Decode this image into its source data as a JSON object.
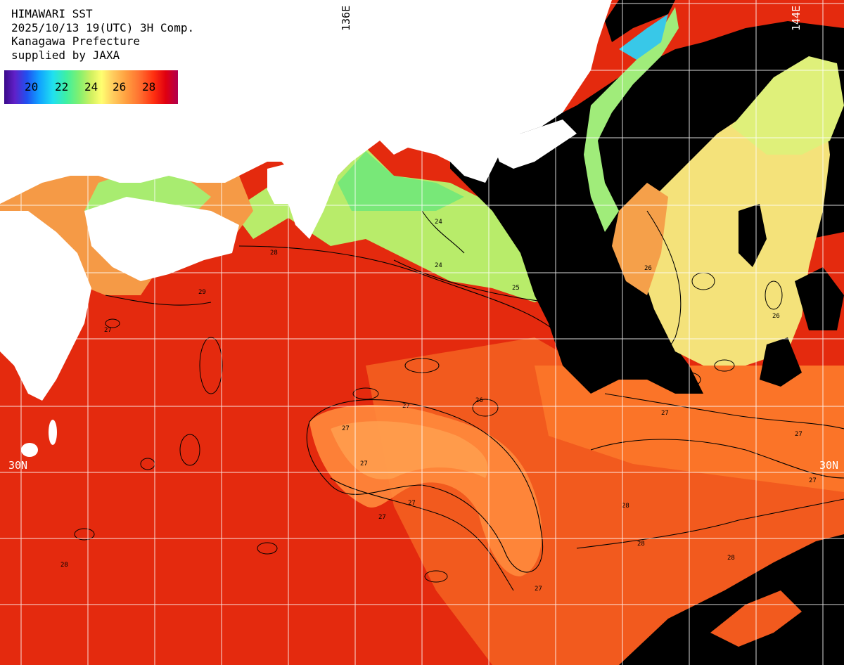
{
  "header": {
    "line1": "HIMAWARI SST",
    "line2": "2025/10/13 19(UTC) 3H Comp.",
    "line3": "Kanagawa Prefecture",
    "line4": "supplied by JAXA"
  },
  "colorbar": {
    "ticks": [
      "20",
      "22",
      "24",
      "26",
      "28"
    ]
  },
  "graticule": {
    "lon_labels": [
      "136E",
      "144E"
    ],
    "lat_labels": [
      "30N",
      "30N"
    ]
  },
  "contour_labels": [
    "24",
    "25",
    "26",
    "27",
    "28",
    "29"
  ],
  "colors": {
    "land": "#ffffff",
    "nodata_cloud": "#000000",
    "sst_warm": "#e82a10",
    "sst_mid": "#ff7a2a",
    "sst_cool": "#c8f070",
    "grid": "#ffffff"
  }
}
